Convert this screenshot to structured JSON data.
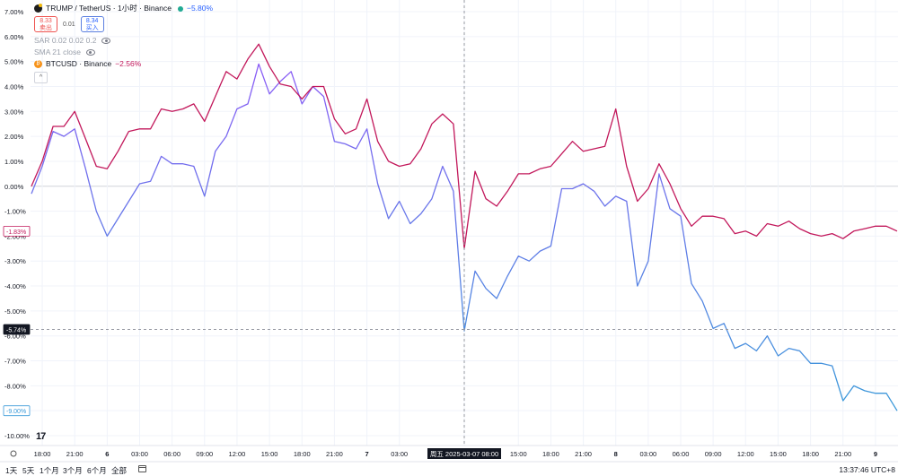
{
  "legend": {
    "symbol": "TRUMP / TetherUS · 1小时 · Binance",
    "symbol_change": "−5.80%",
    "sell_price": "8.33",
    "sell_label": "卖出",
    "spread": "0.01",
    "buy_price": "8.34",
    "buy_label": "买入",
    "sar": "SAR 0.02 0.02 0.2",
    "sma": "SMA 21 close",
    "compare_symbol": "BTCUSD · Binance",
    "compare_change": "−2.56%",
    "btc_glyph": "₿",
    "collapse_glyph": "^"
  },
  "y_axis_labels": [
    "7.00%",
    "6.00%",
    "5.00%",
    "4.00%",
    "3.00%",
    "2.00%",
    "1.00%",
    "0.00%",
    "-1.00%",
    "-2.00%",
    "-3.00%",
    "-4.00%",
    "-5.00%",
    "-6.00%",
    "-7.00%",
    "-8.00%",
    "-9.00%",
    "-10.00%"
  ],
  "price_tags": {
    "btc_last": "-1.83%",
    "crosshair": "-5.74%",
    "trump_last": "-9.00%"
  },
  "x_axis_labels": [
    "18:00",
    "21:00",
    "6",
    "03:00",
    "06:00",
    "09:00",
    "12:00",
    "15:00",
    "18:00",
    "21:00",
    "7",
    "03:00",
    "08:00",
    "15:00",
    "18:00",
    "21:00",
    "8",
    "03:00",
    "06:00",
    "09:00",
    "12:00",
    "15:00",
    "18:00",
    "21:00",
    "9"
  ],
  "crosshair_label": "周五 2025-03-07   08:00",
  "timeframes": [
    "1天",
    "5天",
    "1个月",
    "3个月",
    "6个月",
    "全部"
  ],
  "clock": "13:37:46 UTC+8",
  "tv_logo": "17",
  "colors": {
    "trump_line_top": "#8b5cf6",
    "trump_line_bottom": "#3a9ad9",
    "btc_line": "#c2185b",
    "grid": "#f0f3fa",
    "zero_line": "#d0d3da",
    "crosshair": "#9598a1"
  },
  "chart_data": {
    "type": "line",
    "ylim": [
      -10,
      7
    ],
    "series": [
      {
        "name": "TRUMP / TetherUS",
        "points": [
          [
            0,
            -0.3
          ],
          [
            1,
            0.8
          ],
          [
            2,
            2.2
          ],
          [
            3,
            2.0
          ],
          [
            4,
            2.3
          ],
          [
            5,
            0.7
          ],
          [
            6,
            -1.0
          ],
          [
            7,
            -2.0
          ],
          [
            8,
            -1.3
          ],
          [
            9,
            -0.6
          ],
          [
            10,
            0.1
          ],
          [
            11,
            0.2
          ],
          [
            12,
            1.2
          ],
          [
            13,
            0.9
          ],
          [
            14,
            0.9
          ],
          [
            15,
            0.8
          ],
          [
            16,
            -0.4
          ],
          [
            17,
            1.4
          ],
          [
            18,
            2.0
          ],
          [
            19,
            3.1
          ],
          [
            20,
            3.3
          ],
          [
            21,
            4.9
          ],
          [
            22,
            3.7
          ],
          [
            23,
            4.2
          ],
          [
            24,
            4.6
          ],
          [
            25,
            3.3
          ],
          [
            26,
            4.0
          ],
          [
            27,
            3.6
          ],
          [
            28,
            1.8
          ],
          [
            29,
            1.7
          ],
          [
            30,
            1.5
          ],
          [
            31,
            2.3
          ],
          [
            32,
            0.1
          ],
          [
            33,
            -1.3
          ],
          [
            34,
            -0.6
          ],
          [
            35,
            -1.5
          ],
          [
            36,
            -1.1
          ],
          [
            37,
            -0.5
          ],
          [
            38,
            0.8
          ],
          [
            39,
            -0.2
          ],
          [
            40,
            -5.8
          ],
          [
            41,
            -3.4
          ],
          [
            42,
            -4.1
          ],
          [
            43,
            -4.5
          ],
          [
            44,
            -3.6
          ],
          [
            45,
            -2.8
          ],
          [
            46,
            -3.0
          ],
          [
            47,
            -2.6
          ],
          [
            48,
            -2.4
          ],
          [
            49,
            -0.1
          ],
          [
            50,
            -0.1
          ],
          [
            51,
            0.1
          ],
          [
            52,
            -0.2
          ],
          [
            53,
            -0.8
          ],
          [
            54,
            -0.4
          ],
          [
            55,
            -0.6
          ],
          [
            56,
            -4.0
          ],
          [
            57,
            -3.0
          ],
          [
            58,
            0.5
          ],
          [
            59,
            -0.9
          ],
          [
            60,
            -1.2
          ],
          [
            61,
            -3.9
          ],
          [
            62,
            -4.6
          ],
          [
            63,
            -5.7
          ],
          [
            64,
            -5.5
          ],
          [
            65,
            -6.5
          ],
          [
            66,
            -6.3
          ],
          [
            67,
            -6.6
          ],
          [
            68,
            -6.0
          ],
          [
            69,
            -6.8
          ],
          [
            70,
            -6.5
          ],
          [
            71,
            -6.6
          ],
          [
            72,
            -7.1
          ],
          [
            73,
            -7.1
          ],
          [
            74,
            -7.2
          ],
          [
            75,
            -8.6
          ],
          [
            76,
            -8.0
          ],
          [
            77,
            -8.2
          ],
          [
            78,
            -8.3
          ],
          [
            79,
            -8.3
          ],
          [
            80,
            -9.0
          ]
        ]
      },
      {
        "name": "BTCUSD · Binance",
        "points": [
          [
            0,
            0.0
          ],
          [
            1,
            1.0
          ],
          [
            2,
            2.4
          ],
          [
            3,
            2.4
          ],
          [
            4,
            3.0
          ],
          [
            5,
            1.9
          ],
          [
            6,
            0.8
          ],
          [
            7,
            0.7
          ],
          [
            8,
            1.4
          ],
          [
            9,
            2.2
          ],
          [
            10,
            2.3
          ],
          [
            11,
            2.3
          ],
          [
            12,
            3.1
          ],
          [
            13,
            3.0
          ],
          [
            14,
            3.1
          ],
          [
            15,
            3.3
          ],
          [
            16,
            2.6
          ],
          [
            17,
            3.6
          ],
          [
            18,
            4.6
          ],
          [
            19,
            4.3
          ],
          [
            20,
            5.1
          ],
          [
            21,
            5.7
          ],
          [
            22,
            4.8
          ],
          [
            23,
            4.1
          ],
          [
            24,
            4.0
          ],
          [
            25,
            3.5
          ],
          [
            26,
            4.0
          ],
          [
            27,
            4.0
          ],
          [
            28,
            2.7
          ],
          [
            29,
            2.1
          ],
          [
            30,
            2.3
          ],
          [
            31,
            3.5
          ],
          [
            32,
            1.8
          ],
          [
            33,
            1.0
          ],
          [
            34,
            0.8
          ],
          [
            35,
            0.9
          ],
          [
            36,
            1.5
          ],
          [
            37,
            2.5
          ],
          [
            38,
            2.9
          ],
          [
            39,
            2.5
          ],
          [
            40,
            -2.5
          ],
          [
            41,
            0.6
          ],
          [
            42,
            -0.5
          ],
          [
            43,
            -0.8
          ],
          [
            44,
            -0.2
          ],
          [
            45,
            0.5
          ],
          [
            46,
            0.5
          ],
          [
            47,
            0.7
          ],
          [
            48,
            0.8
          ],
          [
            49,
            1.3
          ],
          [
            50,
            1.8
          ],
          [
            51,
            1.4
          ],
          [
            52,
            1.5
          ],
          [
            53,
            1.6
          ],
          [
            54,
            3.1
          ],
          [
            55,
            0.8
          ],
          [
            56,
            -0.6
          ],
          [
            57,
            -0.1
          ],
          [
            58,
            0.9
          ],
          [
            59,
            0.1
          ],
          [
            60,
            -0.9
          ],
          [
            61,
            -1.6
          ],
          [
            62,
            -1.2
          ],
          [
            63,
            -1.2
          ],
          [
            64,
            -1.3
          ],
          [
            65,
            -1.9
          ],
          [
            66,
            -1.8
          ],
          [
            67,
            -2.0
          ],
          [
            68,
            -1.5
          ],
          [
            69,
            -1.6
          ],
          [
            70,
            -1.4
          ],
          [
            71,
            -1.7
          ],
          [
            72,
            -1.9
          ],
          [
            73,
            -2.0
          ],
          [
            74,
            -1.9
          ],
          [
            75,
            -2.1
          ],
          [
            76,
            -1.8
          ],
          [
            77,
            -1.7
          ],
          [
            78,
            -1.6
          ],
          [
            79,
            -1.6
          ],
          [
            80,
            -1.8
          ]
        ]
      }
    ],
    "x_tick_index": [
      1,
      4,
      7,
      10,
      13,
      16,
      19,
      22,
      25,
      28,
      31,
      34,
      40,
      45,
      48,
      51,
      54,
      57,
      60,
      63,
      66,
      69,
      72,
      75,
      78
    ],
    "crosshair_index": 40,
    "crosshair_value": -5.74
  }
}
